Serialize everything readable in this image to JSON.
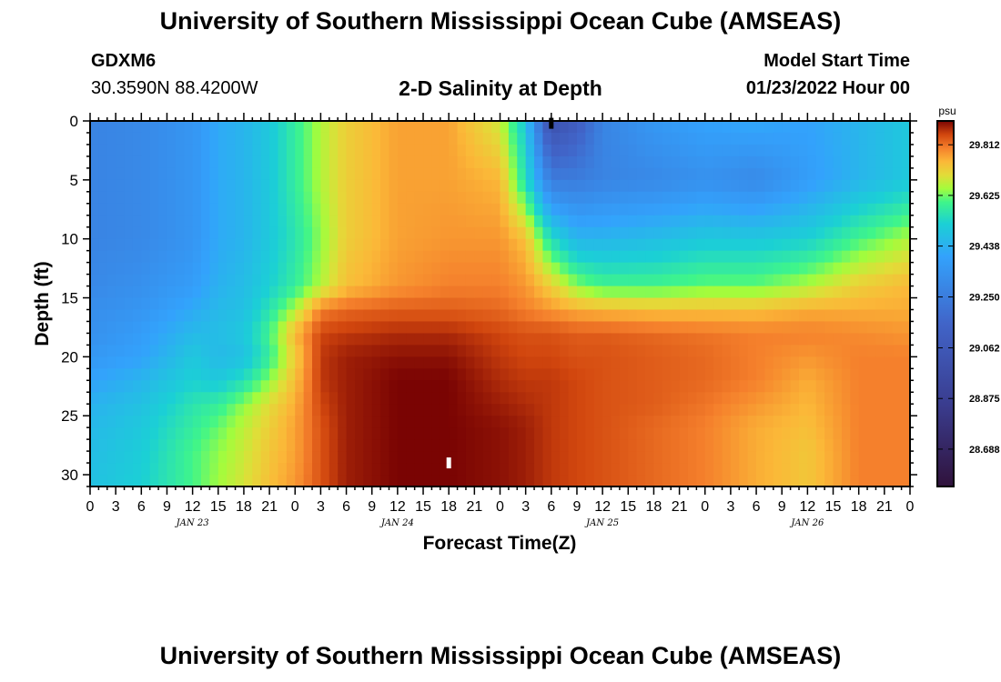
{
  "header": {
    "title": "University of Southern Mississippi Ocean Cube (AMSEAS)",
    "station_id": "GDXM6",
    "coords": "30.3590N  88.4200W",
    "subtitle": "2-D Salinity at Depth",
    "model_start_label": "Model Start Time",
    "model_start_value": "01/23/2022 Hour 00"
  },
  "footer": {
    "title": "University of Southern Mississippi Ocean Cube (AMSEAS)"
  },
  "colors": {
    "frame": "#000000",
    "background": "#ffffff"
  },
  "chart_data": {
    "type": "heatmap",
    "title": "2-D Salinity at Depth",
    "xlabel": "Forecast Time(Z)",
    "ylabel": "Depth (ft)",
    "x_range_hours": [
      0,
      96
    ],
    "y_range_ft": [
      0,
      31
    ],
    "x_ticks_hours": [
      0,
      3,
      6,
      9,
      12,
      15,
      18,
      21,
      24,
      27,
      30,
      33,
      36,
      39,
      42,
      45,
      48,
      51,
      54,
      57,
      60,
      63,
      66,
      69,
      72,
      75,
      78,
      81,
      84,
      87,
      90,
      93,
      96
    ],
    "x_tick_labels": [
      "0",
      "3",
      "6",
      "9",
      "12",
      "15",
      "18",
      "21",
      "0",
      "3",
      "6",
      "9",
      "12",
      "15",
      "18",
      "21",
      "0",
      "3",
      "6",
      "9",
      "12",
      "15",
      "18",
      "21",
      "0",
      "3",
      "6",
      "9",
      "12",
      "15",
      "18",
      "21",
      "0"
    ],
    "day_labels": [
      {
        "label": "JAN 23",
        "hour": 12
      },
      {
        "label": "JAN 24",
        "hour": 36
      },
      {
        "label": "JAN 25",
        "hour": 60
      },
      {
        "label": "JAN 26",
        "hour": 84
      }
    ],
    "y_ticks": [
      0,
      5,
      10,
      15,
      20,
      25,
      30
    ],
    "y_tick_labels": [
      "0",
      "5",
      "10",
      "15",
      "20",
      "25",
      "30"
    ],
    "colorbar": {
      "unit": "psu",
      "range": [
        28.55,
        29.9
      ],
      "tick_values": [
        29.812,
        29.625,
        29.438,
        29.25,
        29.062,
        28.875,
        28.688
      ],
      "tick_labels": [
        "29.812",
        "29.625",
        "29.438",
        "29.250",
        "29.062",
        "28.875",
        "28.688"
      ],
      "stops": [
        {
          "value": 28.55,
          "color": "#30123b"
        },
        {
          "value": 28.85,
          "color": "#3a3c8e"
        },
        {
          "value": 29.15,
          "color": "#4164c8"
        },
        {
          "value": 29.4,
          "color": "#33a2fc"
        },
        {
          "value": 29.52,
          "color": "#1bd0d5"
        },
        {
          "value": 29.6,
          "color": "#3ff58a"
        },
        {
          "value": 29.65,
          "color": "#a4fc3c"
        },
        {
          "value": 29.7,
          "color": "#e2dc38"
        },
        {
          "value": 29.75,
          "color": "#fbb838"
        },
        {
          "value": 29.8,
          "color": "#f5802c"
        },
        {
          "value": 29.85,
          "color": "#d1460e"
        },
        {
          "value": 29.9,
          "color": "#7a0403"
        }
      ]
    },
    "salinity_grid": {
      "hours": [
        0,
        6,
        12,
        15,
        18,
        21,
        24,
        27,
        30,
        36,
        42,
        48,
        51,
        54,
        57,
        60,
        66,
        72,
        78,
        84,
        90,
        96
      ],
      "depths_ft": [
        0,
        5,
        10,
        14,
        16,
        18,
        20,
        22,
        24,
        26,
        28,
        31
      ],
      "values": [
        [
          29.28,
          29.3,
          29.35,
          29.42,
          29.45,
          29.5,
          29.58,
          29.66,
          29.72,
          29.77,
          29.77,
          29.68,
          29.5,
          29.0,
          29.1,
          29.28,
          29.36,
          29.4,
          29.42,
          29.4,
          29.45,
          29.5
        ],
        [
          29.28,
          29.3,
          29.35,
          29.42,
          29.45,
          29.5,
          29.58,
          29.66,
          29.72,
          29.77,
          29.77,
          29.75,
          29.55,
          29.25,
          29.25,
          29.28,
          29.3,
          29.33,
          29.3,
          29.38,
          29.45,
          29.5
        ],
        [
          29.28,
          29.3,
          29.35,
          29.42,
          29.45,
          29.5,
          29.56,
          29.64,
          29.72,
          29.77,
          29.78,
          29.78,
          29.74,
          29.55,
          29.45,
          29.45,
          29.47,
          29.5,
          29.5,
          29.52,
          29.6,
          29.66
        ],
        [
          29.3,
          29.33,
          29.38,
          29.44,
          29.47,
          29.52,
          29.58,
          29.66,
          29.74,
          29.78,
          29.8,
          29.8,
          29.78,
          29.72,
          29.64,
          29.6,
          29.6,
          29.62,
          29.62,
          29.66,
          29.72,
          29.75
        ],
        [
          29.32,
          29.35,
          29.42,
          29.46,
          29.48,
          29.56,
          29.66,
          29.8,
          29.82,
          29.83,
          29.83,
          29.82,
          29.8,
          29.78,
          29.76,
          29.75,
          29.74,
          29.74,
          29.74,
          29.76,
          29.76,
          29.76
        ],
        [
          29.33,
          29.38,
          29.46,
          29.47,
          29.5,
          29.6,
          29.75,
          29.85,
          29.86,
          29.87,
          29.87,
          29.85,
          29.84,
          29.84,
          29.83,
          29.83,
          29.82,
          29.81,
          29.8,
          29.8,
          29.79,
          29.78
        ],
        [
          29.36,
          29.4,
          29.5,
          29.46,
          29.48,
          29.58,
          29.72,
          29.86,
          29.88,
          29.89,
          29.89,
          29.86,
          29.85,
          29.85,
          29.84,
          29.84,
          29.83,
          29.82,
          29.8,
          29.78,
          29.8,
          29.8
        ],
        [
          29.4,
          29.45,
          29.52,
          29.5,
          29.55,
          29.64,
          29.74,
          29.86,
          29.88,
          29.9,
          29.9,
          29.87,
          29.86,
          29.86,
          29.85,
          29.84,
          29.83,
          29.82,
          29.8,
          29.76,
          29.8,
          29.8
        ],
        [
          29.44,
          29.48,
          29.56,
          29.58,
          29.64,
          29.7,
          29.76,
          29.85,
          29.88,
          29.9,
          29.9,
          29.88,
          29.87,
          29.86,
          29.85,
          29.84,
          29.83,
          29.81,
          29.78,
          29.75,
          29.8,
          29.8
        ],
        [
          29.46,
          29.5,
          29.58,
          29.62,
          29.67,
          29.72,
          29.77,
          29.84,
          29.88,
          29.9,
          29.9,
          29.89,
          29.88,
          29.86,
          29.85,
          29.84,
          29.82,
          29.8,
          29.76,
          29.74,
          29.8,
          29.8
        ],
        [
          29.47,
          29.51,
          29.6,
          29.64,
          29.68,
          29.73,
          29.77,
          29.84,
          29.88,
          29.9,
          29.9,
          29.89,
          29.88,
          29.86,
          29.85,
          29.84,
          29.82,
          29.8,
          29.76,
          29.73,
          29.8,
          29.8
        ],
        [
          29.48,
          29.52,
          29.6,
          29.65,
          29.69,
          29.74,
          29.78,
          29.84,
          29.88,
          29.9,
          29.9,
          29.89,
          29.88,
          29.86,
          29.85,
          29.84,
          29.82,
          29.8,
          29.76,
          29.73,
          29.8,
          29.8
        ]
      ]
    },
    "markers": [
      {
        "hour": 42,
        "depth_ft": 29,
        "color": "#ffffff"
      },
      {
        "hour": 54,
        "depth_ft": 0.2,
        "color": "#000000"
      }
    ]
  }
}
